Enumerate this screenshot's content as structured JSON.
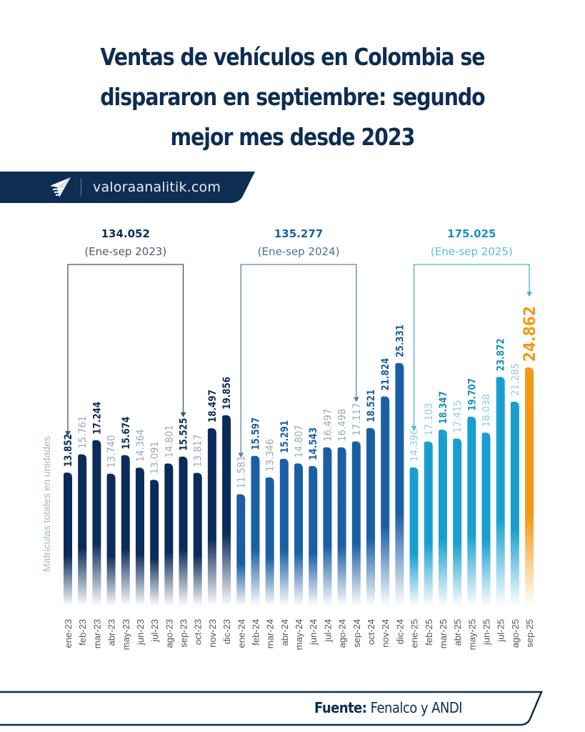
{
  "title": {
    "line1": "Ventas de vehículos en Colombia se",
    "line2": "dispararon en septiembre: segundo",
    "line3": "mejor mes desde 2023"
  },
  "brand": {
    "site": "valoraanalitik.com",
    "logo_icon": "paper-plane-icon"
  },
  "footer": {
    "label": "Fuente:",
    "source": "Fenalco y ANDI"
  },
  "colors": {
    "y2023": "#0b2c5a",
    "y2024": "#1a5fa3",
    "y2025": "#189fcf",
    "highlight": "#f39a14",
    "label_dark_2023": "#0d2d52",
    "label_dark_2024": "#1a5fa3",
    "label_dark_2025": "#1b8fbf",
    "label_light": "#9aa9b8",
    "label_light_2025": "#8fcde4",
    "bracket_2023": "#3b5573",
    "bracket_2024": "#5a84a8",
    "bracket_2025": "#48b2d4"
  },
  "chart_data": {
    "type": "bar",
    "title": "Ventas de vehículos en Colombia se dispararon en septiembre: segundo mejor mes desde 2023",
    "xlabel": "",
    "ylabel": "Matrículas totales en unidades",
    "ylim": [
      0,
      26000
    ],
    "grid": false,
    "legend": "none",
    "categories": [
      "ene-23",
      "feb-23",
      "mar-23",
      "abr-23",
      "may-23",
      "jun-23",
      "jul-23",
      "ago-23",
      "sep-23",
      "oct-23",
      "nov-23",
      "dic-23",
      "ene-24",
      "feb-24",
      "mar-24",
      "abr-24",
      "may-24",
      "jun-24",
      "jul-24",
      "ago-24",
      "sep-24",
      "oct-24",
      "nov-24",
      "dic-24",
      "ene-25",
      "feb-25",
      "mar-25",
      "abr-25",
      "may-25",
      "jun-25",
      "jul-25",
      "ago-25",
      "sep-25"
    ],
    "values": [
      13852,
      15761,
      17244,
      13740,
      15674,
      14364,
      13091,
      14801,
      15525,
      13817,
      18497,
      19856,
      11581,
      15597,
      13346,
      15291,
      14807,
      14543,
      16497,
      16498,
      17117,
      18521,
      21824,
      25331,
      14396,
      17103,
      18347,
      17415,
      19707,
      18038,
      23872,
      21285,
      24862
    ],
    "value_labels": [
      "13.852",
      "15.761",
      "17.244",
      "13.740",
      "15.674",
      "14.364",
      "13.091",
      "14.801",
      "15.525",
      "13.817",
      "18.497",
      "19.856",
      "11.581",
      "15.597",
      "13.346",
      "15.291",
      "14.807",
      "14.543",
      "16.497",
      "16.498",
      "17.117",
      "18.521",
      "21.824",
      "25.331",
      "14.396",
      "17.103",
      "18.347",
      "17.415",
      "19.707",
      "18.038",
      "23.872",
      "21.285",
      "24.862"
    ],
    "label_emphasis": [
      true,
      false,
      true,
      false,
      true,
      false,
      false,
      false,
      true,
      false,
      true,
      true,
      false,
      true,
      false,
      true,
      false,
      true,
      false,
      false,
      false,
      true,
      true,
      true,
      false,
      false,
      true,
      false,
      true,
      false,
      true,
      false,
      true
    ],
    "year_group": [
      2023,
      2023,
      2023,
      2023,
      2023,
      2023,
      2023,
      2023,
      2023,
      2023,
      2023,
      2023,
      2024,
      2024,
      2024,
      2024,
      2024,
      2024,
      2024,
      2024,
      2024,
      2024,
      2024,
      2024,
      2025,
      2025,
      2025,
      2025,
      2025,
      2025,
      2025,
      2025,
      2025
    ],
    "highlight_index": 32,
    "annotations": [
      {
        "total": "134.052",
        "period": "(Ene-sep 2023)",
        "from": "ene-23",
        "to": "sep-23",
        "group": 2023
      },
      {
        "total": "135.277",
        "period": "(Ene-sep 2024)",
        "from": "ene-24",
        "to": "sep-24",
        "group": 2024
      },
      {
        "total": "175.025",
        "period": "(Ene-sep 2025)",
        "from": "ene-25",
        "to": "sep-25",
        "group": 2025
      }
    ]
  }
}
